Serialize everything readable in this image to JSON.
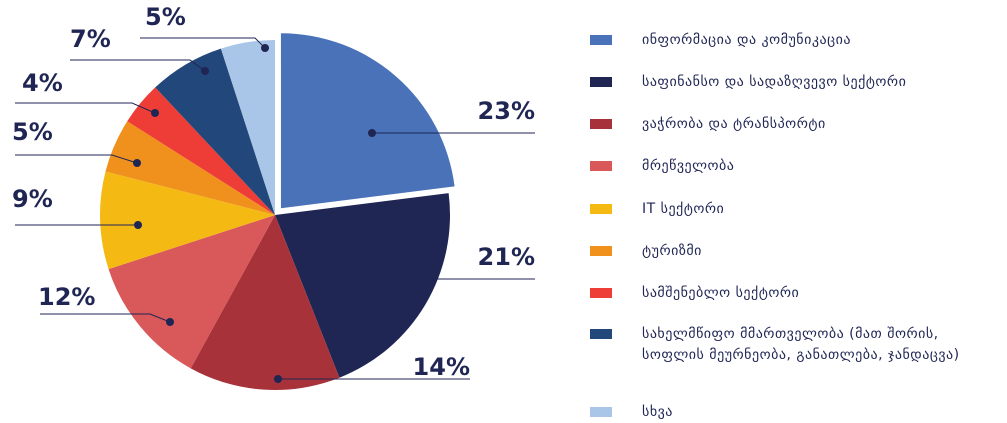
{
  "chart_data": {
    "type": "pie",
    "categories": [
      "ინფორმაცია და კომუნიკაცია",
      "საფინანსო და სადაზღვევო სექტორი",
      "ვაჭრობა და ტრანსპორტი",
      "მრეწველობა",
      "IT სექტორი",
      "ტურიზმი",
      "სამშენებლო სექტორი",
      "სახელმწიფო მმართველობა (მათ შორის, სოფლის მეურნეობა, განათლება, ჯანდაცვა)",
      "სხვა"
    ],
    "values": [
      23,
      21,
      14,
      12,
      9,
      5,
      4,
      7,
      5
    ],
    "value_labels": [
      "23%",
      "21%",
      "14%",
      "12%",
      "9%",
      "5%",
      "4%",
      "7%",
      "5%"
    ],
    "colors": [
      "#4a72b8",
      "#1f2654",
      "#a8323a",
      "#d9585a",
      "#f5b914",
      "#f0911e",
      "#ee3d36",
      "#22477a",
      "#a9c6e8"
    ],
    "legend": "right"
  }
}
